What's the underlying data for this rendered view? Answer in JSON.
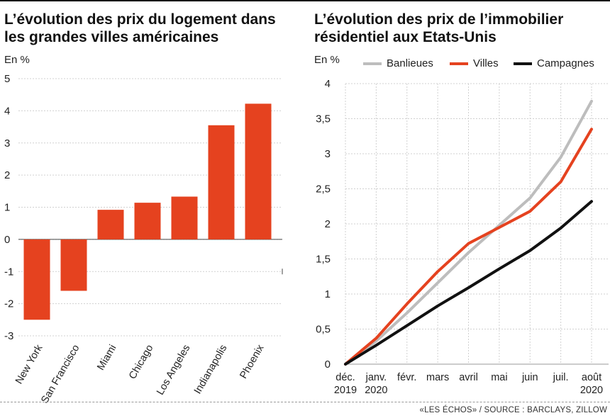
{
  "charts": {
    "left_title": "L’évolution des prix du logement dans les grandes villes américaines",
    "left_unit": "En %",
    "right_title": "L’évolution des prix de l’immobilier résidentiel aux Etats-Unis",
    "right_unit": "En %",
    "legend": [
      {
        "label": "Banlieues",
        "color": "#bdbdbd"
      },
      {
        "label": "Villes",
        "color": "#e5421f"
      },
      {
        "label": "Campagnes",
        "color": "#111111"
      }
    ]
  },
  "source": "«LES ÉCHOS» / SOURCE : BARCLAYS, ZILLOW",
  "chart_data": [
    {
      "type": "bar",
      "title": "L’évolution des prix du logement dans les grandes villes américaines",
      "ylabel": "En %",
      "categories": [
        "New York",
        "San Francisco",
        "Miami",
        "Chicago",
        "Los Angeles",
        "Indianapolis",
        "Phoenix"
      ],
      "values": [
        -2.5,
        -1.6,
        0.92,
        1.14,
        1.33,
        3.55,
        4.22
      ],
      "ylim": [
        -3,
        5
      ],
      "yticks": [
        "5",
        "4",
        "3",
        "2",
        "1",
        "0",
        "-1",
        "-2",
        "-3"
      ],
      "grid": true,
      "color": "#e5421f"
    },
    {
      "type": "line",
      "title": "L’évolution des prix de l’immobilier résidentiel aux Etats-Unis",
      "ylabel": "En %",
      "x": [
        [
          "déc.",
          "2019"
        ],
        [
          "janv.",
          "2020"
        ],
        [
          "févr.",
          ""
        ],
        [
          "mars",
          ""
        ],
        [
          "avril",
          ""
        ],
        [
          "mai",
          ""
        ],
        [
          "juin",
          ""
        ],
        [
          "juil.",
          ""
        ],
        [
          "août",
          "2020"
        ]
      ],
      "ylim": [
        0,
        4
      ],
      "yticks": [
        "4",
        "3,5",
        "3",
        "2,5",
        "2",
        "1,5",
        "1",
        "0,5",
        "0"
      ],
      "grid": true,
      "legend_position": "top",
      "series": [
        {
          "name": "Banlieues",
          "color": "#bdbdbd",
          "values": [
            0,
            0.33,
            0.73,
            1.16,
            1.59,
            1.98,
            2.37,
            2.95,
            3.75
          ]
        },
        {
          "name": "Villes",
          "color": "#e5421f",
          "values": [
            0,
            0.37,
            0.86,
            1.32,
            1.72,
            1.95,
            2.18,
            2.6,
            3.35
          ]
        },
        {
          "name": "Campagnes",
          "color": "#111111",
          "values": [
            0,
            0.27,
            0.55,
            0.83,
            1.09,
            1.36,
            1.62,
            1.94,
            2.32
          ]
        }
      ]
    }
  ]
}
